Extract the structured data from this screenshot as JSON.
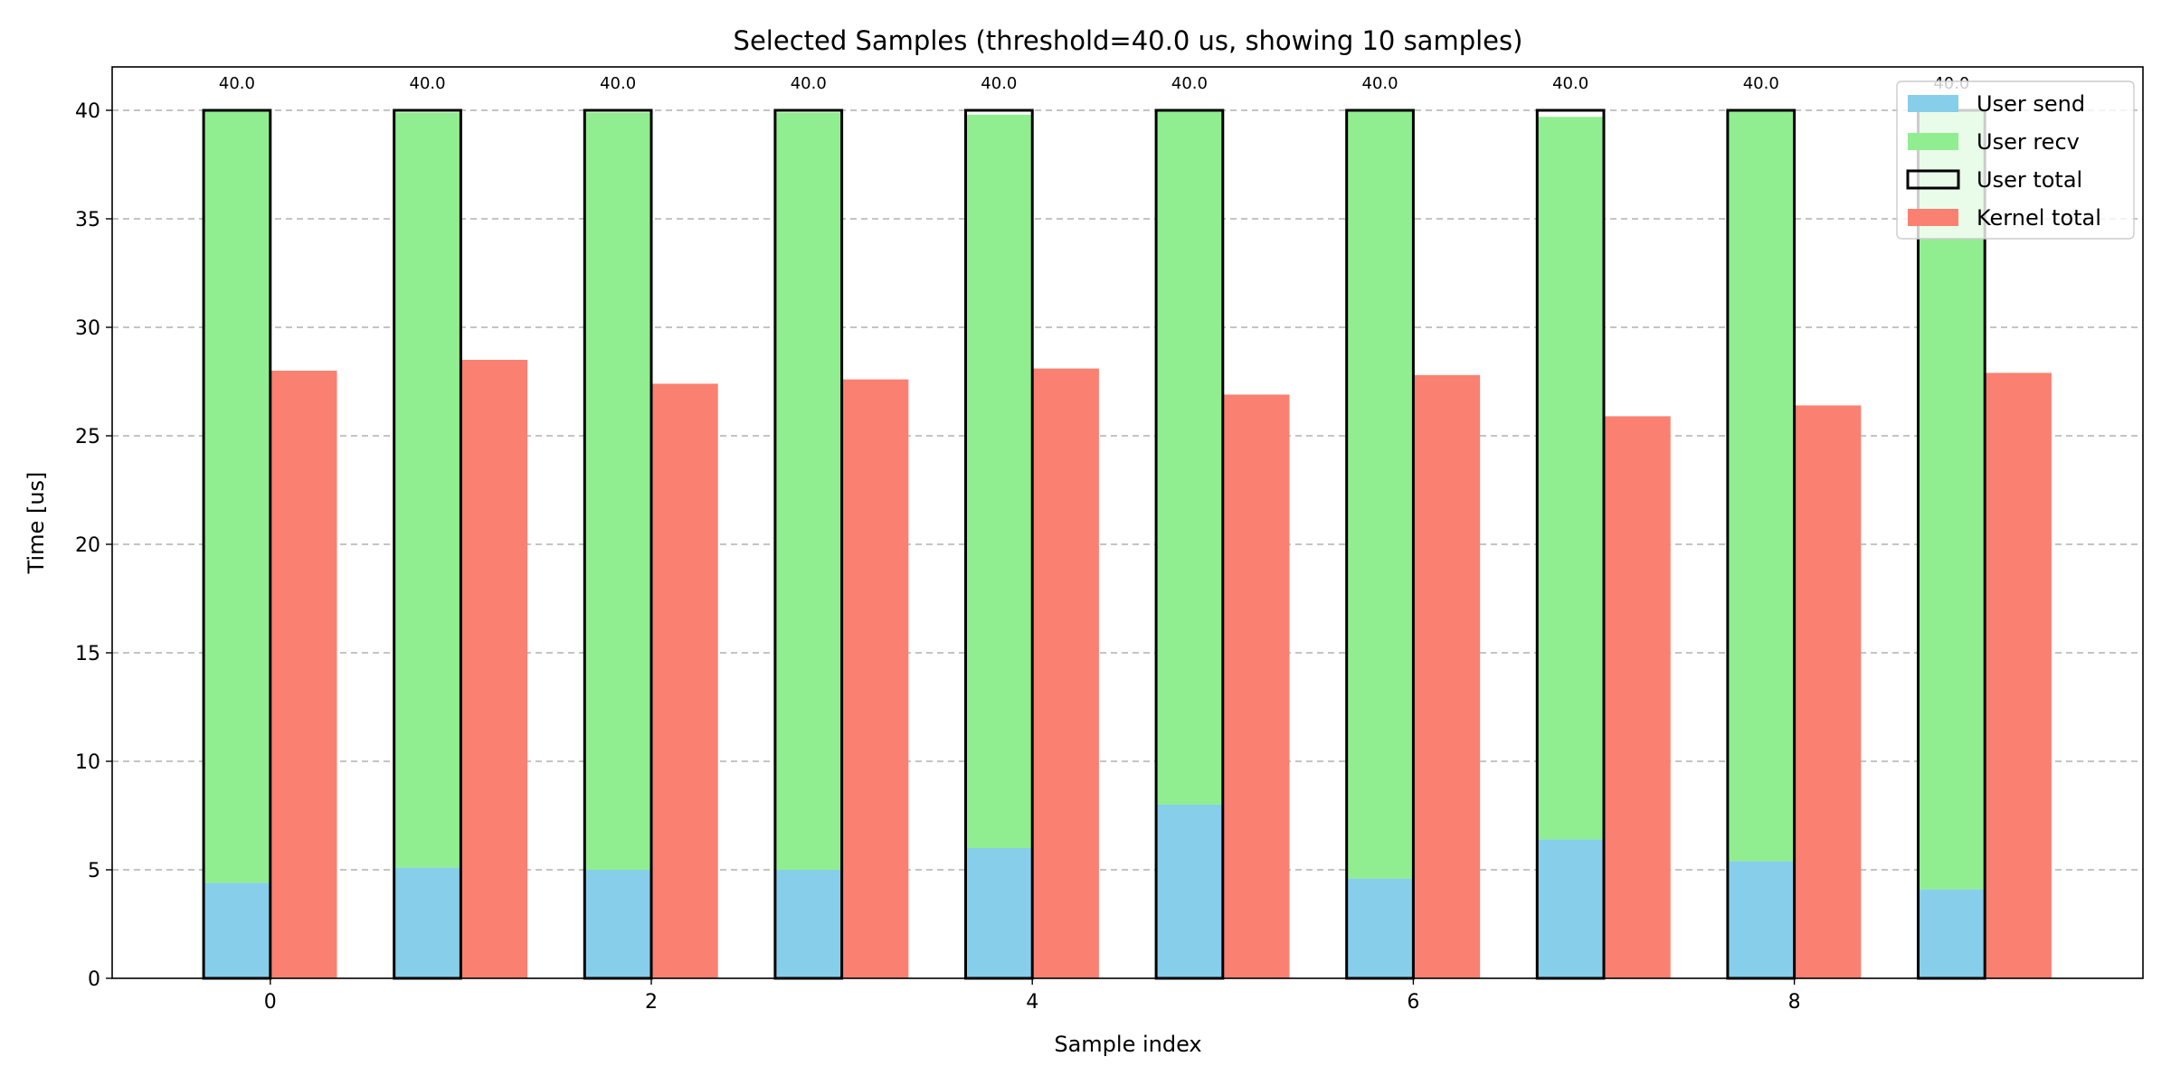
{
  "chart_data": {
    "type": "bar",
    "title": "Selected Samples (threshold=40.0 us, showing 10 samples)",
    "xlabel": "Sample index",
    "ylabel": "Time [us]",
    "categories": [
      0,
      1,
      2,
      3,
      4,
      5,
      6,
      7,
      8,
      9
    ],
    "x_ticks": [
      "0",
      "2",
      "4",
      "6",
      "8"
    ],
    "y_ticks": [
      "0",
      "5",
      "10",
      "15",
      "20",
      "25",
      "30",
      "35",
      "40"
    ],
    "xlim": [
      -0.83,
      9.83
    ],
    "ylim": [
      0,
      42
    ],
    "grid": "y-dashed",
    "legend_position": "top-right",
    "series": [
      {
        "name": "User send",
        "values": [
          4.4,
          5.1,
          5.0,
          5.0,
          6.0,
          8.0,
          4.6,
          6.4,
          5.4,
          4.1
        ],
        "color": "#87ceeb"
      },
      {
        "name": "User recv",
        "values": [
          35.6,
          34.8,
          34.9,
          34.9,
          33.8,
          32.0,
          35.4,
          33.3,
          34.6,
          35.9
        ],
        "color": "#90ee90"
      },
      {
        "name": "User total",
        "values": [
          40.0,
          40.0,
          40.0,
          40.0,
          40.0,
          40.0,
          40.0,
          40.0,
          40.0,
          40.0
        ],
        "color": "#000000"
      },
      {
        "name": "Kernel total",
        "values": [
          28.0,
          28.5,
          27.4,
          27.6,
          28.1,
          26.9,
          27.8,
          25.9,
          26.4,
          27.9
        ],
        "color": "#fa8072"
      }
    ],
    "bar_labels": [
      "40.0",
      "40.0",
      "40.0",
      "40.0",
      "40.0",
      "40.0",
      "40.0",
      "40.0",
      "40.0",
      "40.0"
    ]
  }
}
